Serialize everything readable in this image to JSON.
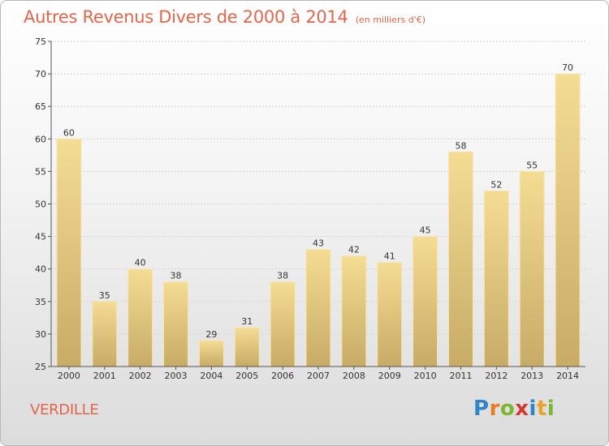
{
  "chart_data": {
    "type": "bar",
    "title": "Autres Revenus Divers de 2000 à 2014",
    "unit": "(en milliers d'€)",
    "categories": [
      "2000",
      "2001",
      "2002",
      "2003",
      "2004",
      "2005",
      "2006",
      "2007",
      "2008",
      "2009",
      "2010",
      "2011",
      "2012",
      "2013",
      "2014"
    ],
    "values": [
      60,
      35,
      40,
      38,
      29,
      31,
      38,
      43,
      42,
      41,
      45,
      58,
      52,
      55,
      70
    ],
    "ylim": [
      25,
      75
    ],
    "yticks": [
      25,
      30,
      35,
      40,
      45,
      50,
      55,
      60,
      65,
      70,
      75
    ],
    "grid": true,
    "bar_color_top": "#f5dc93",
    "bar_color_bottom": "#c7ab67"
  },
  "place_name": "VERDILLE",
  "logo": {
    "letters": [
      "P",
      "r",
      "o",
      "x",
      "i",
      "t",
      "i"
    ],
    "colors": [
      "#2e86c9",
      "#e97a26",
      "#7bb72f",
      "#d6372f",
      "#2e86c9",
      "#e9a22a",
      "#7bb72f"
    ]
  }
}
